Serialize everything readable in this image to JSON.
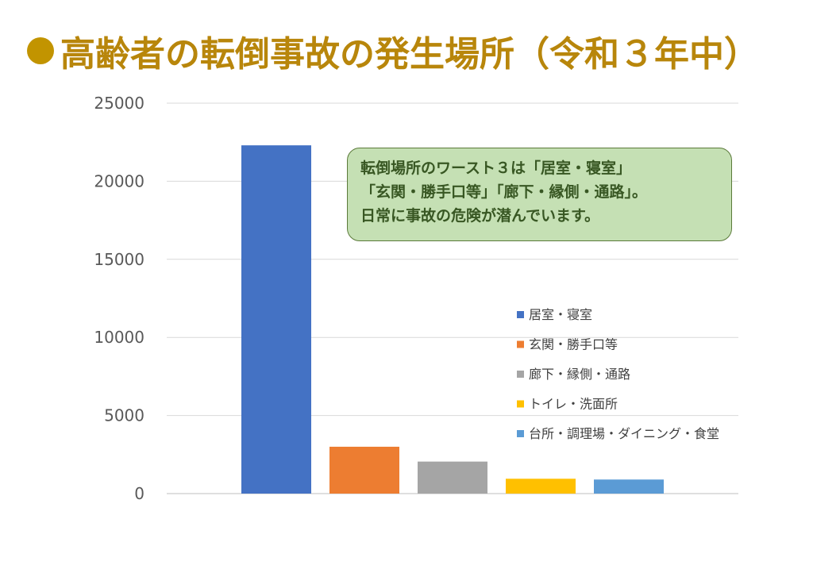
{
  "title": "高齢者の転倒事故の発生場所（令和３年中）",
  "callout": {
    "lines": [
      "転倒場所のワースト３は「居室・寝室」",
      "「玄関・勝手口等」「廊下・縁側・通路」。",
      "日常に事故の危険が潜んでいます。"
    ]
  },
  "chart_data": {
    "type": "bar",
    "title": "",
    "xlabel": "",
    "ylabel": "",
    "ylim": [
      0,
      25000
    ],
    "yticks": [
      0,
      5000,
      10000,
      15000,
      20000,
      25000
    ],
    "grid": true,
    "legend_position": "right",
    "series": [
      {
        "name": "居室・寝室",
        "values": [
          22300
        ],
        "color": "#4472c4"
      },
      {
        "name": "玄関・勝手口等",
        "values": [
          3000
        ],
        "color": "#ed7d31"
      },
      {
        "name": "廊下・縁側・通路",
        "values": [
          2050
        ],
        "color": "#a5a5a5"
      },
      {
        "name": "トイレ・洗面所",
        "values": [
          950
        ],
        "color": "#ffc000"
      },
      {
        "name": "台所・調理場・ダイニング・食堂",
        "values": [
          900
        ],
        "color": "#5b9bd5"
      }
    ]
  }
}
